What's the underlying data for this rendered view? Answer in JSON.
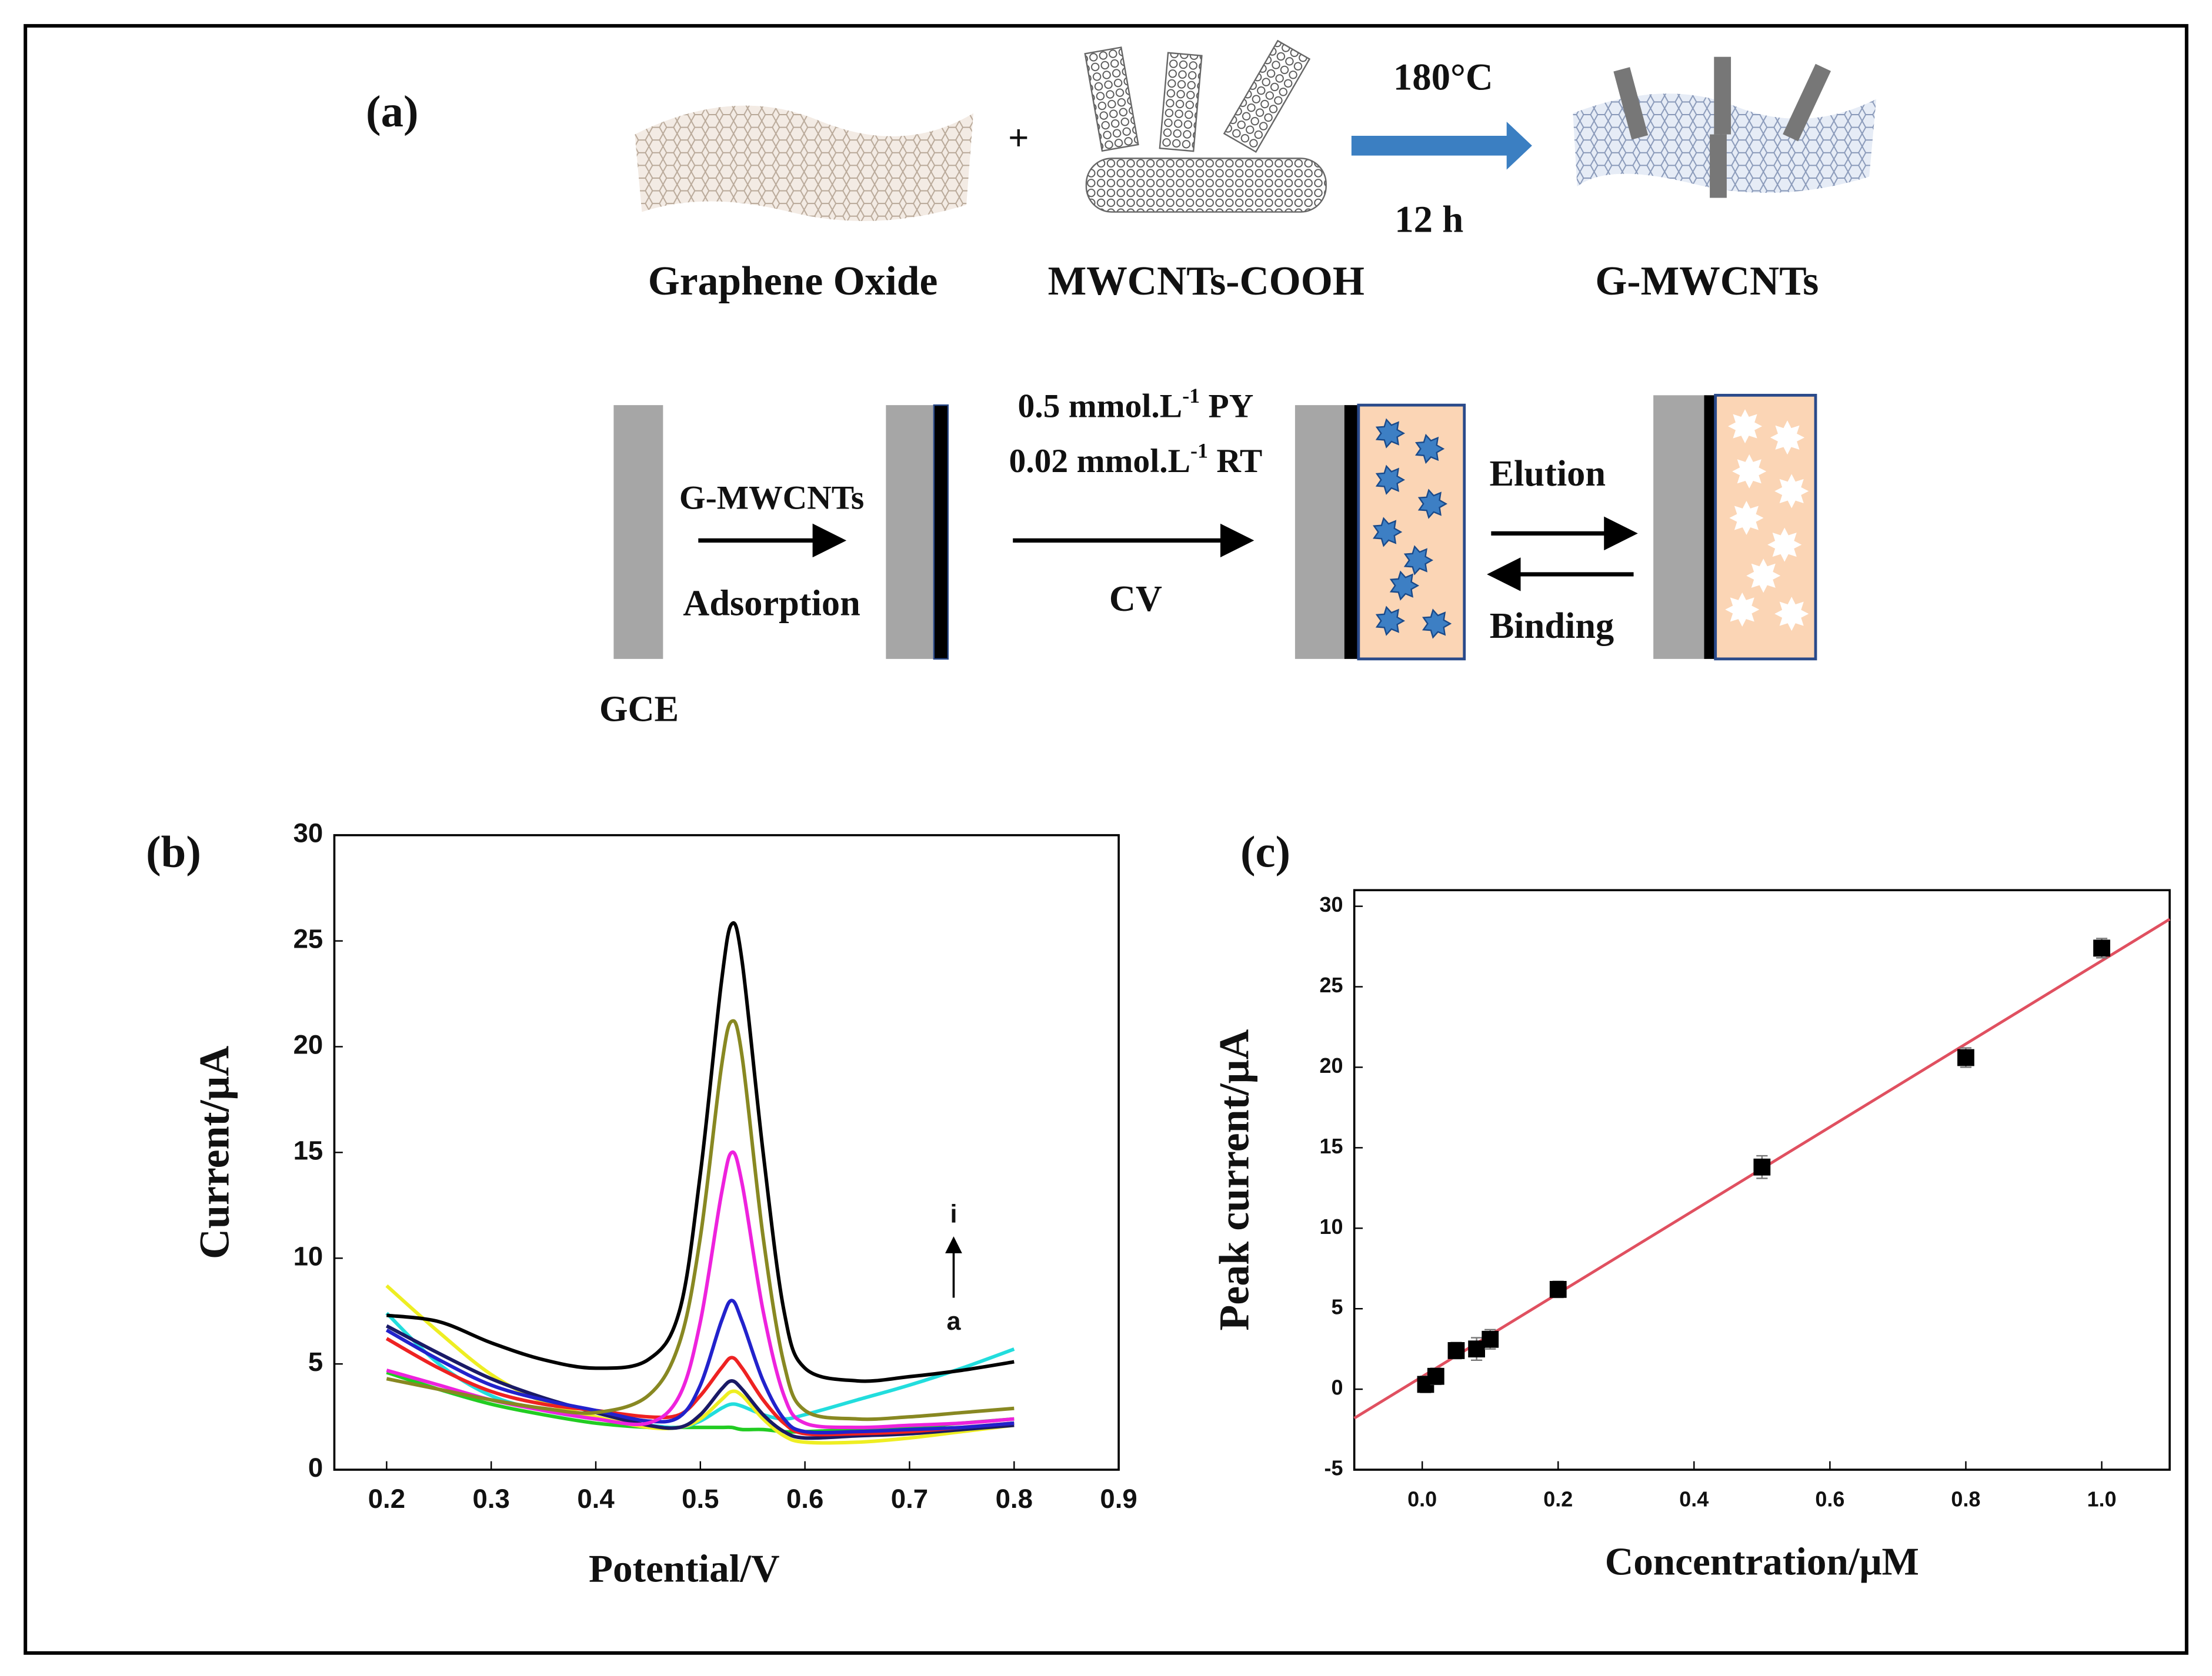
{
  "diagram": {
    "panel_label": "(a)",
    "plus": "+",
    "condition_top": "180°C",
    "condition_bottom": "12 h",
    "materials": [
      "Graphene Oxide",
      "MWCNTs-COOH",
      "G-MWCNTs"
    ],
    "step1_top": "G-MWCNTs",
    "step1_bottom": "Adsorption",
    "electrode": "GCE",
    "step2_top": [
      {
        "pre": "0.5 mmol.L",
        "sup": "-1",
        "post": " PY"
      },
      {
        "pre": "0.02 mmol.L",
        "sup": "-1",
        "post": " RT"
      }
    ],
    "step2_bottom": "CV",
    "step3_top": "Elution",
    "step3_bottom": "Binding"
  },
  "chart_data": [
    {
      "type": "line",
      "panel_label": "(b)",
      "x_label": "Potential/V",
      "y_label": "Current/μA",
      "annotations": [
        "i",
        "a"
      ],
      "x": [
        0.2,
        0.25,
        0.3,
        0.35,
        0.4,
        0.45,
        0.48,
        0.5,
        0.52,
        0.53,
        0.54,
        0.56,
        0.58,
        0.6,
        0.65,
        0.7,
        0.75,
        0.8
      ],
      "series": [
        {
          "color": "#22cc22",
          "values": [
            4.6,
            3.8,
            3.1,
            2.6,
            2.2,
            2,
            2,
            2,
            2,
            2,
            1.9,
            1.9,
            1.8,
            1.8,
            1.9,
            2.0,
            2.2,
            2.4
          ]
        },
        {
          "color": "#22dddd",
          "values": [
            7.4,
            5,
            3.5,
            2.8,
            2.4,
            2.1,
            2,
            2.3,
            2.9,
            3.1,
            3,
            2.6,
            2.4,
            2.6,
            3.3,
            4,
            4.8,
            5.7
          ]
        },
        {
          "color": "#eeee22",
          "values": [
            8.7,
            6.5,
            4.5,
            3.2,
            2.5,
            2,
            2,
            2.4,
            3.3,
            3.7,
            3.5,
            2.4,
            1.6,
            1.3,
            1.3,
            1.5,
            1.8,
            2.1
          ]
        },
        {
          "color": "#1a1a66",
          "values": [
            6.8,
            5.5,
            4.3,
            3.4,
            2.7,
            2.1,
            2,
            2.6,
            3.8,
            4.2,
            3.8,
            2.6,
            1.8,
            1.5,
            1.6,
            1.7,
            1.9,
            2.1
          ]
        },
        {
          "color": "#ee2222",
          "values": [
            6.2,
            4.8,
            3.7,
            3.1,
            2.8,
            2.5,
            2.6,
            3.5,
            4.8,
            5.3,
            4.8,
            3.3,
            2.2,
            1.7,
            1.7,
            1.8,
            2.0,
            2.2
          ]
        },
        {
          "color": "#2222cc",
          "values": [
            6.6,
            5.2,
            4,
            3.3,
            2.8,
            2.3,
            2.5,
            4,
            7,
            8,
            7,
            4.2,
            2.4,
            1.8,
            1.8,
            1.9,
            2.0,
            2.2
          ]
        },
        {
          "color": "#ee22dd",
          "values": [
            4.7,
            4,
            3.3,
            2.8,
            2.4,
            2.2,
            3.5,
            7,
            13,
            15,
            13.5,
            7.5,
            3.5,
            2.2,
            2,
            2.1,
            2.2,
            2.4
          ]
        },
        {
          "color": "#888822",
          "values": [
            4.3,
            3.8,
            3.3,
            2.9,
            2.7,
            3.5,
            6,
            11,
            19,
            21.2,
            19.5,
            11,
            5,
            2.8,
            2.4,
            2.5,
            2.7,
            2.9
          ]
        },
        {
          "color": "#000000",
          "values": [
            7.3,
            7,
            6,
            5.2,
            4.8,
            5.2,
            7.5,
            14,
            23,
            25.8,
            24,
            15,
            7.5,
            4.8,
            4.2,
            4.4,
            4.7,
            5.1
          ]
        }
      ],
      "xlim": [
        0.15,
        0.9
      ],
      "xticks": [
        0.2,
        0.3,
        0.4,
        0.5,
        0.6,
        0.7,
        0.8,
        0.9
      ],
      "ylim": [
        0,
        30
      ],
      "yticks": [
        0,
        5,
        10,
        15,
        20,
        25,
        30
      ]
    },
    {
      "type": "scatter",
      "panel_label": "(c)",
      "x_label": "Concentration/μM",
      "y_label": "Peak current/μA",
      "color": "#000000",
      "x": [
        0.005,
        0.02,
        0.05,
        0.08,
        0.1,
        0.2,
        0.5,
        0.8,
        1.0
      ],
      "values": [
        0.3,
        0.8,
        2.4,
        2.5,
        3.1,
        6.2,
        13.8,
        20.6,
        27.4
      ],
      "errors": [
        0.5,
        0.5,
        0.5,
        0.7,
        0.6,
        0.5,
        0.7,
        0.6,
        0.6
      ],
      "fit": {
        "color": "#e05060",
        "x": [
          -0.1,
          1.1
        ],
        "y": [
          -1.8,
          29.2
        ]
      },
      "xlim": [
        -0.1,
        1.1
      ],
      "xticks": [
        {
          "value": 0,
          "label": "0.0"
        },
        0.2,
        0.4,
        0.6,
        0.8,
        {
          "value": 1,
          "label": "1.0"
        }
      ],
      "ylim": [
        -5,
        31
      ],
      "yticks": [
        -5,
        0,
        5,
        10,
        15,
        20,
        25,
        30
      ]
    }
  ]
}
